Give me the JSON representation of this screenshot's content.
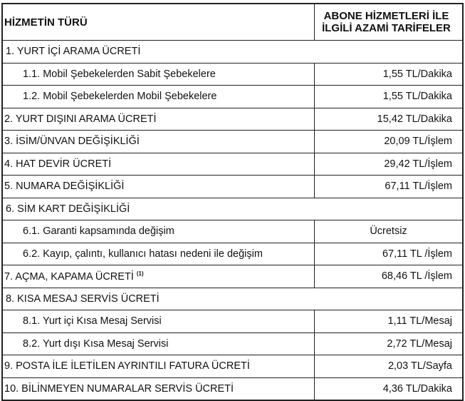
{
  "header": {
    "col1": "HİZMETİN TÜRÜ",
    "col2_line1": "ABONE HİZMETLERİ İLE",
    "col2_line2": "İLGİLİ AZAMİ TARİFELER"
  },
  "rows": [
    {
      "label": "1. YURT İÇİ ARAMA ÜCRETİ"
    },
    {
      "label": "1.1. Mobil Şebekelerden Sabit Şebekelere",
      "value": "1,55 TL/Dakika"
    },
    {
      "label": "1.2. Mobil Şebekelerden Mobil Şebekelere",
      "value": "1,55 TL/Dakika"
    },
    {
      "label": "2. YURT DIŞINI ARAMA ÜCRETİ",
      "value": "15,42 TL/Dakika"
    },
    {
      "label": "3. İSİM/ÜNVAN DEĞİŞİKLİĞİ",
      "value": "20,09 TL/İşlem"
    },
    {
      "label": "4. HAT DEVİR ÜCRETİ",
      "value": "29,42 TL/İşlem"
    },
    {
      "label": "5. NUMARA DEĞİŞİKLİĞİ",
      "value": "67,11 TL/İşlem"
    },
    {
      "label": "6. SİM KART DEĞİŞİKLİĞİ"
    },
    {
      "label": "6.1. Garanti kapsamında değişim",
      "value": "Ücretsiz"
    },
    {
      "label": "6.2. Kayıp, çalıntı, kullanıcı hatası nedeni ile değişim",
      "value": "67,11 TL /İşlem"
    },
    {
      "label": "7. AÇMA, KAPAMA ÜCRETİ",
      "footnote": "(1)",
      "value": "68,46 TL /İşlem"
    },
    {
      "label": "8. KISA MESAJ SERVİS ÜCRETİ"
    },
    {
      "label": "8.1. Yurt içi Kısa Mesaj Servisi",
      "value": "1,11 TL/Mesaj"
    },
    {
      "label": "8.2. Yurt dışı Kısa Mesaj Servisi",
      "value": "2,72 TL/Mesaj"
    },
    {
      "label": "9. POSTA İLE İLETİLEN AYRINTILI FATURA ÜCRETİ",
      "value": "2,03 TL/Sayfa"
    },
    {
      "label": "10.  BİLİNMEYEN NUMARALAR SERVİS ÜCRETİ",
      "value": "4,36 TL/Dakika"
    }
  ]
}
